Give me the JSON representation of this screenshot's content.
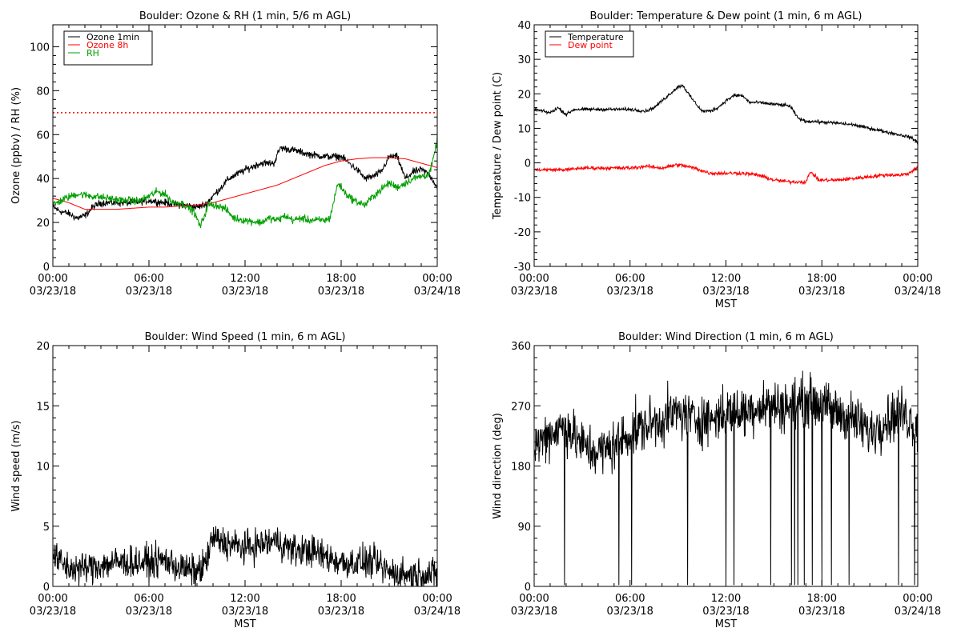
{
  "chart_data": [
    {
      "type": "line",
      "title": "Boulder: Ozone & RH (1 min, 5/6 m AGL)",
      "ylabel": "Ozone (ppbv) / RH (%)",
      "xlabel": "",
      "ylim": [
        0,
        110
      ],
      "yticks": [
        0,
        20,
        40,
        60,
        80,
        100
      ],
      "xlim_hours": [
        0,
        24
      ],
      "xticks": [
        {
          "time": "00:00",
          "date": "03/23/18"
        },
        {
          "time": "06:00",
          "date": "03/23/18"
        },
        {
          "time": "12:00",
          "date": "03/23/18"
        },
        {
          "time": "18:00",
          "date": "03/23/18"
        },
        {
          "time": "00:00",
          "date": "03/24/18"
        }
      ],
      "legend": [
        {
          "label": "Ozone 1min",
          "color": "#000000"
        },
        {
          "label": "Ozone 8h",
          "color": "#ff0000"
        },
        {
          "label": "RH",
          "color": "#00a000"
        }
      ],
      "legend_position": "top-left",
      "reference_line": {
        "y": 70,
        "color": "#ff0000",
        "style": "dotted"
      },
      "series": [
        {
          "name": "Ozone 1min",
          "color": "#000000",
          "noise": 1.2,
          "x": [
            0,
            0.5,
            1.0,
            1.5,
            2.0,
            2.5,
            3,
            4,
            5,
            6,
            7,
            8,
            9,
            9.5,
            10,
            10.5,
            11,
            12,
            13,
            13.8,
            14.2,
            15,
            16,
            17,
            18,
            18.5,
            19,
            19.5,
            20,
            20.5,
            21,
            21.5,
            22,
            22.5,
            23,
            23.5,
            24
          ],
          "y": [
            27,
            25,
            24,
            22,
            23,
            27,
            29,
            29,
            29,
            30,
            29,
            28,
            27,
            28,
            32,
            36,
            40,
            44,
            47,
            47,
            54,
            53,
            51,
            50,
            50,
            47,
            44,
            40,
            41,
            43,
            50,
            50,
            40,
            43,
            44,
            42,
            36
          ]
        },
        {
          "name": "Ozone 8h",
          "color": "#ff0000",
          "noise": 0,
          "x": [
            0,
            1,
            2,
            3,
            4,
            5,
            6,
            7,
            8,
            9,
            10,
            11,
            12,
            13,
            14,
            15,
            16,
            17,
            18,
            19,
            20,
            21,
            22,
            23,
            24
          ],
          "y": [
            31,
            29,
            26,
            26,
            26,
            26.5,
            27,
            27,
            27.5,
            28,
            29,
            31,
            33,
            35,
            37,
            40,
            43,
            46,
            48,
            49,
            49.5,
            49.5,
            49,
            47,
            45
          ]
        },
        {
          "name": "RH",
          "color": "#00a000",
          "noise": 1.3,
          "x": [
            0,
            0.8,
            1.5,
            2.5,
            3.5,
            4.5,
            5.5,
            6.5,
            7.0,
            7.5,
            8,
            8.8,
            9.2,
            9.7,
            10.2,
            10.8,
            11.3,
            12,
            13,
            13.5,
            14,
            14.5,
            15,
            15.5,
            16,
            16.5,
            17,
            17.3,
            17.8,
            18.3,
            18.8,
            19.5,
            20,
            20.5,
            21,
            21.5,
            22,
            22.5,
            23,
            23.5,
            23.8,
            24
          ],
          "y": [
            28,
            31,
            33,
            32,
            31,
            30,
            30,
            34,
            33,
            29,
            29,
            25,
            18,
            28,
            28,
            26,
            22,
            21,
            20,
            22,
            21,
            23,
            21,
            22,
            21,
            21,
            21,
            22,
            38,
            33,
            30,
            28,
            32,
            35,
            38,
            36,
            38,
            40,
            41,
            42,
            50,
            58
          ]
        }
      ]
    },
    {
      "type": "line",
      "title": "Boulder: Temperature & Dew point (1 min, 6 m AGL)",
      "ylabel": "Temperature / Dew point (C)",
      "xlabel": "MST",
      "ylim": [
        -30,
        40
      ],
      "yticks": [
        -30,
        -20,
        -10,
        0,
        10,
        20,
        30,
        40
      ],
      "xlim_hours": [
        0,
        24
      ],
      "xticks": [
        {
          "time": "00:00",
          "date": "03/23/18"
        },
        {
          "time": "06:00",
          "date": "03/23/18"
        },
        {
          "time": "12:00",
          "date": "03/23/18"
        },
        {
          "time": "18:00",
          "date": "03/23/18"
        },
        {
          "time": "00:00",
          "date": "03/24/18"
        }
      ],
      "legend": [
        {
          "label": "Temperature",
          "color": "#000000"
        },
        {
          "label": "Dew point",
          "color": "#ff0000"
        }
      ],
      "legend_position": "top-left",
      "series": [
        {
          "name": "Temperature",
          "color": "#000000",
          "noise": 0.35,
          "x": [
            0,
            0.5,
            1,
            1.5,
            2,
            2.5,
            3,
            4,
            5,
            6,
            7,
            7.5,
            8,
            8.5,
            9,
            9.3,
            9.8,
            10.5,
            11,
            11.5,
            12,
            12.5,
            13,
            13.5,
            14,
            15,
            16,
            16.5,
            17,
            17.5,
            18,
            19,
            20,
            21,
            22,
            23,
            23.5,
            24
          ],
          "y": [
            15.5,
            15,
            14.5,
            16,
            14,
            15.5,
            15.5,
            15.5,
            15.5,
            15.5,
            15,
            16,
            18,
            20,
            22,
            22.5,
            19,
            15,
            15,
            16,
            18,
            19.5,
            19.5,
            17.5,
            17.5,
            17,
            16.5,
            13,
            12,
            12,
            11.8,
            11.5,
            11,
            10,
            9,
            8,
            7.5,
            6
          ]
        },
        {
          "name": "Dew point",
          "color": "#ff0000",
          "noise": 0.4,
          "x": [
            0,
            1,
            2,
            3,
            4,
            5,
            6,
            7,
            8,
            9,
            10,
            11,
            12,
            13,
            14,
            15,
            16,
            17,
            17.3,
            17.8,
            18.5,
            19,
            20,
            21,
            22,
            23,
            23.5,
            24
          ],
          "y": [
            -2,
            -2,
            -2,
            -1.5,
            -1.5,
            -1.5,
            -1.5,
            -1,
            -1.5,
            -0.5,
            -1.5,
            -3,
            -3,
            -3,
            -3.5,
            -5,
            -5.5,
            -5.5,
            -2.5,
            -5,
            -5,
            -5,
            -4.5,
            -4,
            -3.5,
            -3.5,
            -3,
            -1
          ]
        }
      ]
    },
    {
      "type": "line",
      "title": "Boulder: Wind Speed (1 min, 6 m AGL)",
      "ylabel": "Wind speed (m/s)",
      "xlabel": "MST",
      "ylim": [
        0,
        20
      ],
      "yticks": [
        0,
        5,
        10,
        15,
        20
      ],
      "xlim_hours": [
        0,
        24
      ],
      "xticks": [
        {
          "time": "00:00",
          "date": "03/23/18"
        },
        {
          "time": "06:00",
          "date": "03/23/18"
        },
        {
          "time": "12:00",
          "date": "03/23/18"
        },
        {
          "time": "18:00",
          "date": "03/23/18"
        },
        {
          "time": "00:00",
          "date": "03/24/18"
        }
      ],
      "series": [
        {
          "name": "Wind speed",
          "color": "#000000",
          "noise": 1.0,
          "x": [
            0,
            1,
            2,
            3,
            4,
            5,
            6,
            7,
            8,
            9,
            9.5,
            10,
            11,
            12,
            13,
            14,
            15,
            16,
            17,
            18,
            19,
            20,
            21,
            22,
            23,
            24
          ],
          "y": [
            2.5,
            1.5,
            1.5,
            1.8,
            2,
            2,
            2,
            2.2,
            1.5,
            1.2,
            1.8,
            4,
            3.5,
            3.2,
            3.5,
            3.8,
            3,
            3,
            2.5,
            2,
            2,
            2,
            1.2,
            1,
            1,
            1
          ]
        }
      ]
    },
    {
      "type": "line",
      "title": "Boulder: Wind Direction (1 min, 6 m AGL)",
      "ylabel": "Wind direction (deg)",
      "xlabel": "MST",
      "ylim": [
        0,
        360
      ],
      "yticks": [
        0,
        90,
        180,
        270,
        360
      ],
      "xlim_hours": [
        0,
        24
      ],
      "xticks": [
        {
          "time": "00:00",
          "date": "03/23/18"
        },
        {
          "time": "06:00",
          "date": "03/23/18"
        },
        {
          "time": "12:00",
          "date": "03/23/18"
        },
        {
          "time": "18:00",
          "date": "03/23/18"
        },
        {
          "time": "00:00",
          "date": "03/24/18"
        }
      ],
      "series": [
        {
          "name": "Wind direction",
          "color": "#000000",
          "noise": 28,
          "x": [
            0,
            1,
            2,
            3,
            4,
            5,
            6,
            7,
            8,
            9,
            10,
            11,
            12,
            13,
            14,
            15,
            16,
            17,
            18,
            19,
            20,
            21,
            22,
            23,
            24
          ],
          "y": [
            210,
            230,
            240,
            210,
            200,
            210,
            230,
            240,
            250,
            260,
            250,
            250,
            260,
            260,
            270,
            270,
            270,
            280,
            270,
            260,
            250,
            230,
            250,
            260,
            240
          ]
        }
      ],
      "drops": [
        1.9,
        5.3,
        6.1,
        9.6,
        12.0,
        12.5,
        14.8,
        16.1,
        16.3,
        16.5,
        16.9,
        17.4,
        18.0,
        18.6,
        19.7,
        22.8,
        23.8
      ]
    }
  ]
}
